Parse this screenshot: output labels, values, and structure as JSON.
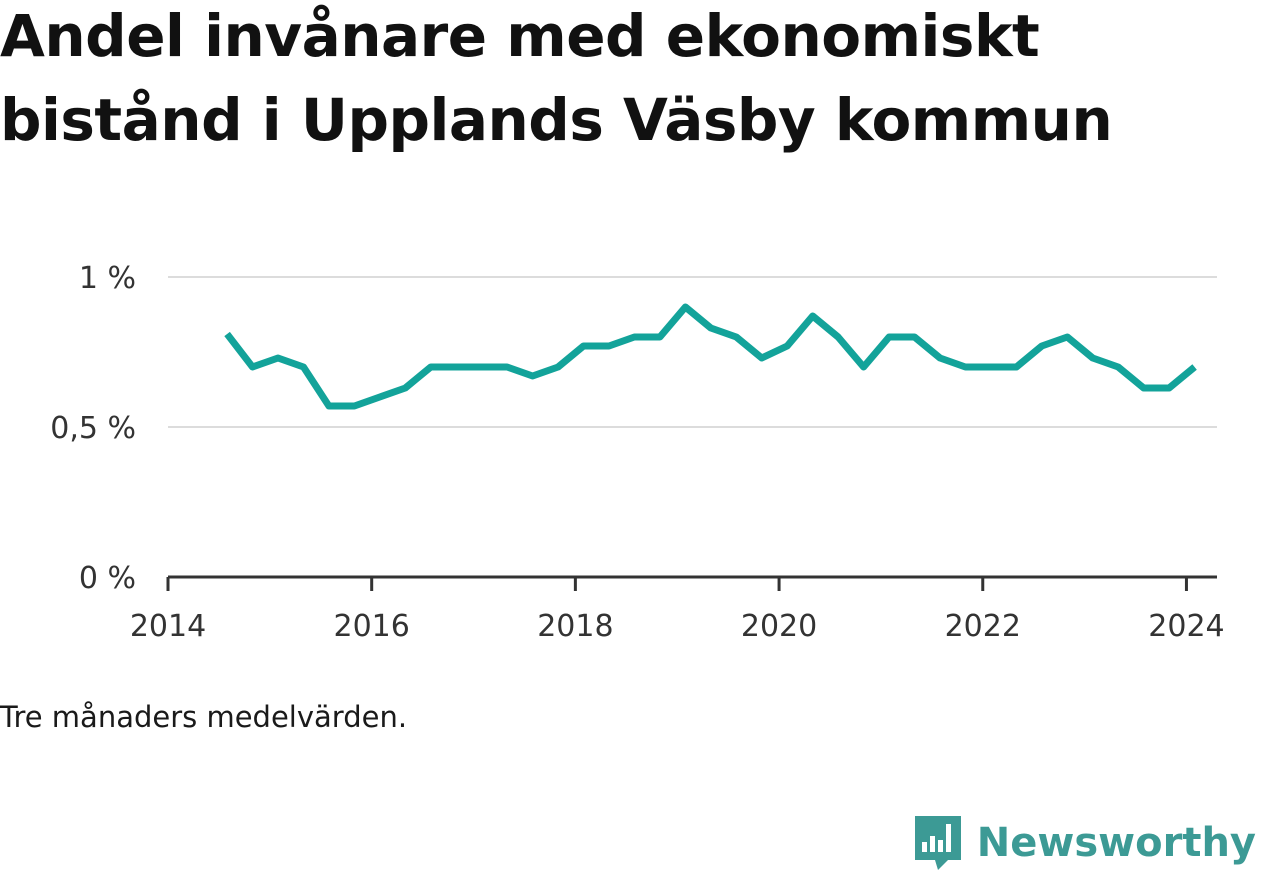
{
  "chart_data": {
    "type": "line",
    "title": "Andel invånare med ekonomiskt bistånd i Upplands Väsby kommun",
    "note": "Tre månaders medelvärden.",
    "xlim": [
      2014,
      2024.3
    ],
    "ylim": [
      0,
      1
    ],
    "x_ticks": [
      2014,
      2016,
      2018,
      2020,
      2022,
      2024
    ],
    "y_ticks": [
      {
        "value": 0,
        "label": "0 %"
      },
      {
        "value": 0.5,
        "label": "0,5 %"
      },
      {
        "value": 1,
        "label": "1 %"
      }
    ],
    "grid": true,
    "series": [
      {
        "color": "#13a39a",
        "x": [
          2014.58,
          2014.83,
          2015.08,
          2015.33,
          2015.58,
          2015.83,
          2016.08,
          2016.33,
          2016.58,
          2016.83,
          2017.08,
          2017.33,
          2017.58,
          2017.83,
          2018.08,
          2018.33,
          2018.58,
          2018.83,
          2019.08,
          2019.33,
          2019.58,
          2019.83,
          2020.08,
          2020.33,
          2020.58,
          2020.83,
          2021.08,
          2021.33,
          2021.58,
          2021.83,
          2022.08,
          2022.33,
          2022.58,
          2022.83,
          2023.08,
          2023.33,
          2023.58,
          2023.83,
          2024.08
        ],
        "values": [
          0.81,
          0.7,
          0.73,
          0.7,
          0.57,
          0.57,
          0.6,
          0.63,
          0.7,
          0.7,
          0.7,
          0.7,
          0.67,
          0.7,
          0.77,
          0.77,
          0.8,
          0.8,
          0.9,
          0.83,
          0.8,
          0.73,
          0.77,
          0.87,
          0.8,
          0.7,
          0.8,
          0.8,
          0.73,
          0.7,
          0.7,
          0.7,
          0.77,
          0.8,
          0.73,
          0.7,
          0.63,
          0.63,
          0.7
        ]
      }
    ]
  },
  "brand": {
    "name": "Newsworthy",
    "color": "#3c9a95",
    "icon": "bar-chart-speech-bubble-icon"
  }
}
